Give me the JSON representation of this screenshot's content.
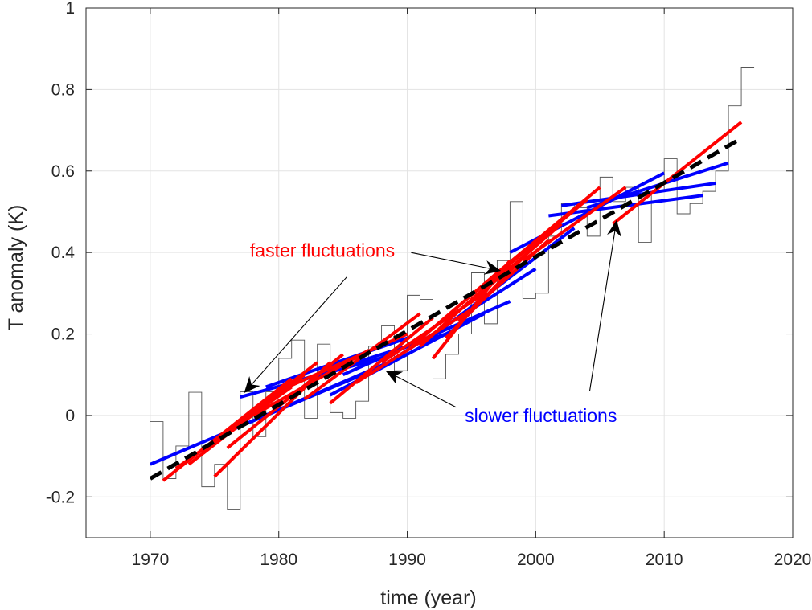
{
  "chart_data": {
    "type": "line",
    "xlabel": "time (year)",
    "ylabel": "T anomaly (K)",
    "xlim": [
      1965,
      2020
    ],
    "ylim": [
      -0.3,
      1.0
    ],
    "xticks": [
      "1970",
      "1980",
      "1990",
      "2000",
      "2010",
      "2020"
    ],
    "yticks": [
      "-0.2",
      "0",
      "0.2",
      "0.4",
      "0.6",
      "0.8",
      "1"
    ],
    "grid": true,
    "annual_anomaly": {
      "style": "stairs",
      "years": [
        1970,
        1971,
        1972,
        1973,
        1974,
        1975,
        1976,
        1977,
        1978,
        1979,
        1980,
        1981,
        1982,
        1983,
        1984,
        1985,
        1986,
        1987,
        1988,
        1989,
        1990,
        1991,
        1992,
        1993,
        1994,
        1995,
        1996,
        1997,
        1998,
        1999,
        2000,
        2001,
        2002,
        2003,
        2004,
        2005,
        2006,
        2007,
        2008,
        2009,
        2010,
        2011,
        2012,
        2013,
        2014,
        2015,
        2016
      ],
      "values": [
        -0.015,
        -0.155,
        -0.075,
        0.057,
        -0.175,
        -0.12,
        -0.23,
        0.058,
        -0.052,
        0.058,
        0.14,
        0.185,
        -0.007,
        0.175,
        0.007,
        -0.007,
        0.035,
        0.17,
        0.22,
        0.11,
        0.295,
        0.285,
        0.09,
        0.15,
        0.2,
        0.35,
        0.225,
        0.38,
        0.525,
        0.287,
        0.3,
        0.44,
        0.52,
        0.51,
        0.44,
        0.585,
        0.525,
        0.56,
        0.425,
        0.55,
        0.63,
        0.495,
        0.52,
        0.55,
        0.6,
        0.76,
        0.855
      ],
      "color": "#555555"
    },
    "trend": {
      "x": [
        1970,
        2016
      ],
      "y": [
        -0.155,
        0.68
      ],
      "color": "#000000",
      "dashed": true
    },
    "faster_fits": {
      "color": "#ff0000",
      "segments": [
        {
          "x": [
            1971,
            1981
          ],
          "y": [
            -0.16,
            0.09
          ]
        },
        {
          "x": [
            1972,
            1981
          ],
          "y": [
            -0.13,
            0.07
          ]
        },
        {
          "x": [
            1973,
            1982
          ],
          "y": [
            -0.12,
            0.1
          ]
        },
        {
          "x": [
            1974,
            1983
          ],
          "y": [
            -0.09,
            0.13
          ]
        },
        {
          "x": [
            1975,
            1984
          ],
          "y": [
            -0.15,
            0.13
          ]
        },
        {
          "x": [
            1976,
            1985
          ],
          "y": [
            -0.08,
            0.15
          ]
        },
        {
          "x": [
            1978,
            1987
          ],
          "y": [
            0.0,
            0.16
          ]
        },
        {
          "x": [
            1980,
            1990
          ],
          "y": [
            0.06,
            0.2
          ]
        },
        {
          "x": [
            1982,
            1991
          ],
          "y": [
            0.04,
            0.25
          ]
        },
        {
          "x": [
            1984,
            1992
          ],
          "y": [
            0.03,
            0.24
          ]
        },
        {
          "x": [
            1986,
            1995
          ],
          "y": [
            0.08,
            0.26
          ]
        },
        {
          "x": [
            1988,
            1996
          ],
          "y": [
            0.13,
            0.3
          ]
        },
        {
          "x": [
            1990,
            1997
          ],
          "y": [
            0.16,
            0.35
          ]
        },
        {
          "x": [
            1991,
            1998
          ],
          "y": [
            0.17,
            0.37
          ]
        },
        {
          "x": [
            1992,
            1998
          ],
          "y": [
            0.14,
            0.38
          ]
        },
        {
          "x": [
            1993,
            2000
          ],
          "y": [
            0.19,
            0.42
          ]
        },
        {
          "x": [
            1994,
            2001
          ],
          "y": [
            0.23,
            0.43
          ]
        },
        {
          "x": [
            1995,
            2002
          ],
          "y": [
            0.28,
            0.47
          ]
        },
        {
          "x": [
            1996,
            2004
          ],
          "y": [
            0.32,
            0.53
          ]
        },
        {
          "x": [
            1997,
            2005
          ],
          "y": [
            0.35,
            0.56
          ]
        },
        {
          "x": [
            1999,
            2007
          ],
          "y": [
            0.38,
            0.56
          ]
        },
        {
          "x": [
            2006,
            2016
          ],
          "y": [
            0.47,
            0.72
          ]
        }
      ]
    },
    "slower_fits": {
      "color": "#0000ff",
      "segments": [
        {
          "x": [
            1970,
            1988
          ],
          "y": [
            -0.12,
            0.12
          ]
        },
        {
          "x": [
            1976,
            1990
          ],
          "y": [
            -0.04,
            0.15
          ]
        },
        {
          "x": [
            1977,
            1989
          ],
          "y": [
            0.045,
            0.15
          ]
        },
        {
          "x": [
            1979,
            1990
          ],
          "y": [
            0.07,
            0.19
          ]
        },
        {
          "x": [
            1981,
            1993
          ],
          "y": [
            0.08,
            0.2
          ]
        },
        {
          "x": [
            1984,
            1996
          ],
          "y": [
            0.05,
            0.25
          ]
        },
        {
          "x": [
            1985,
            1998
          ],
          "y": [
            0.1,
            0.28
          ]
        },
        {
          "x": [
            1988,
            2000
          ],
          "y": [
            0.12,
            0.36
          ]
        },
        {
          "x": [
            1991,
            2003
          ],
          "y": [
            0.17,
            0.46
          ]
        },
        {
          "x": [
            1998,
            2010
          ],
          "y": [
            0.4,
            0.595
          ]
        },
        {
          "x": [
            2001,
            2013
          ],
          "y": [
            0.49,
            0.54
          ]
        },
        {
          "x": [
            2002,
            2014
          ],
          "y": [
            0.515,
            0.57
          ]
        },
        {
          "x": [
            2004,
            2015
          ],
          "y": [
            0.51,
            0.62
          ]
        }
      ]
    },
    "annotations": [
      {
        "id": "faster",
        "text": "faster fluctuations",
        "color": "#ff0000",
        "x": 1983.4,
        "y": 0.405,
        "anchor": "middle",
        "arrows": [
          {
            "from": [
              1985.3,
              0.34
            ],
            "to": [
              1977.3,
              0.055
            ]
          },
          {
            "from": [
              1990.3,
              0.4
            ],
            "to": [
              1997.3,
              0.355
            ]
          }
        ]
      },
      {
        "id": "slower",
        "text": "slower fluctuations",
        "color": "#0000ff",
        "x": 2000.4,
        "y": 0.0,
        "anchor": "middle",
        "arrows": [
          {
            "from": [
              1993.8,
              0.02
            ],
            "to": [
              1988.3,
              0.11
            ]
          },
          {
            "from": [
              2004.2,
              0.06
            ],
            "to": [
              2006.3,
              0.48
            ]
          }
        ]
      }
    ]
  }
}
